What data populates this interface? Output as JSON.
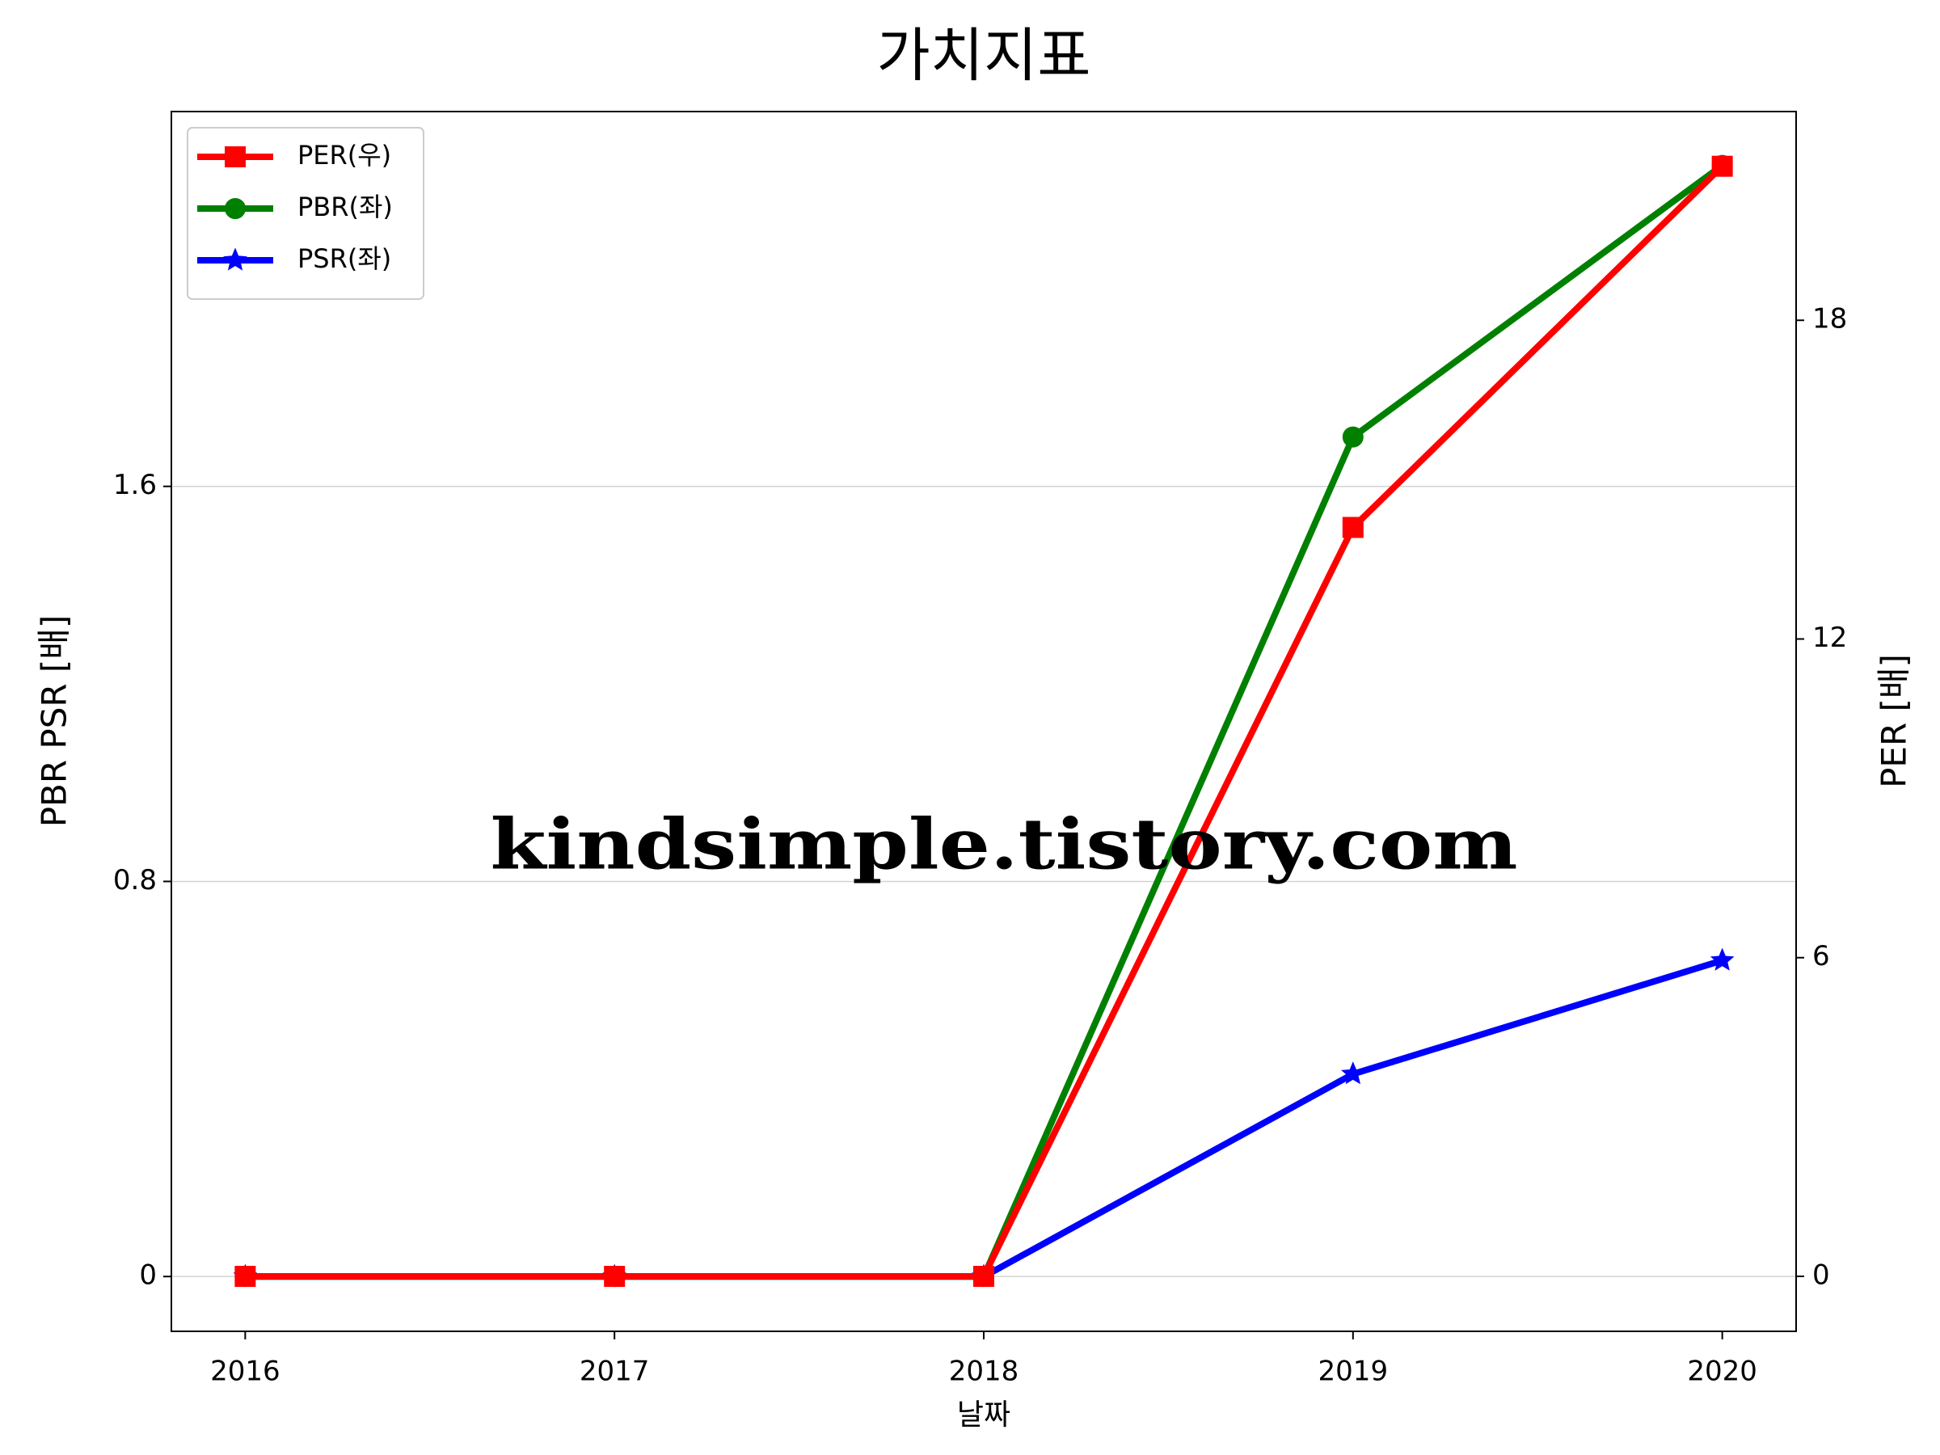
{
  "chart_data": {
    "type": "line",
    "title": "가치지표",
    "x_label": "날짜",
    "y_label": "PBR PSR [배]",
    "y_label_color": "#008000",
    "y2_label": "PER [배]",
    "y2_label_color": "#ff0000",
    "x": [
      2016,
      2017,
      2018,
      2019,
      2020
    ],
    "xlim": [
      2015.8,
      2020.2
    ],
    "xticks": [
      2016,
      2017,
      2018,
      2019,
      2020
    ],
    "ylim": [
      -0.111,
      2.359
    ],
    "yticks": [
      0.0,
      0.8,
      1.6
    ],
    "y2lim": [
      -1.035,
      21.93
    ],
    "y2ticks": [
      0,
      6,
      12,
      18
    ],
    "grid": true,
    "legend": "upper left",
    "series": [
      {
        "name": "PER(우)",
        "color": "#ff0000",
        "marker": "square",
        "axis": "y2",
        "values": [
          0,
          0,
          0,
          14.1,
          20.9
        ]
      },
      {
        "name": "PBR(좌)",
        "color": "#008000",
        "marker": "circle",
        "values": [
          0,
          0,
          0,
          1.7,
          2.25
        ]
      },
      {
        "name": "PSR(좌)",
        "color": "#0000ff",
        "marker": "star",
        "values": [
          0,
          0,
          0,
          0.41,
          0.64
        ]
      }
    ],
    "annotation": "kindsimple.tistory.com",
    "annotation_color": "#e3a2ea"
  }
}
